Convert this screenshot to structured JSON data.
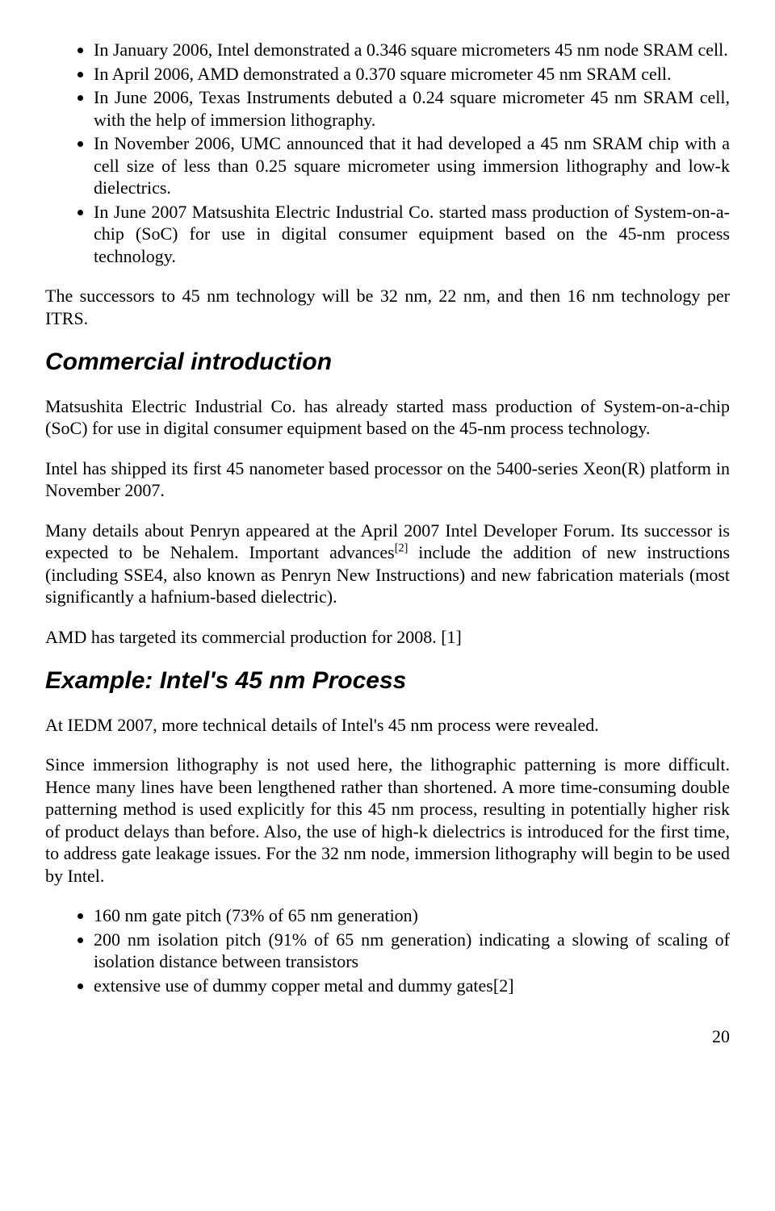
{
  "list1": {
    "items": [
      "In January 2006, Intel demonstrated a 0.346 square micrometers 45 nm node SRAM cell.",
      "In April 2006, AMD demonstrated a 0.370 square micrometer 45 nm SRAM cell.",
      "In June 2006, Texas Instruments debuted a 0.24 square micrometer 45 nm SRAM cell, with the help of immersion lithography.",
      "In November 2006, UMC announced that it had developed a 45 nm SRAM chip with a cell size of less than 0.25 square micrometer using immersion lithography and low-k dielectrics.",
      "In June 2007 Matsushita Electric Industrial Co. started mass production of System-on-a-chip (SoC) for use in digital consumer equipment based on the 45-nm process technology."
    ]
  },
  "para1": "The successors to 45 nm technology will be 32 nm, 22 nm, and then 16 nm technology per ITRS.",
  "heading1": "Commercial introduction",
  "para2": "Matsushita Electric Industrial Co. has already started mass production of System-on-a-chip (SoC) for use in digital consumer equipment based on the 45-nm process technology.",
  "para3": "Intel has shipped its first 45 nanometer based processor on the 5400-series Xeon(R) platform in November 2007.",
  "para4_a": "Many details about Penryn appeared at the April 2007 Intel Developer Forum. Its successor is expected to be Nehalem. Important advances",
  "para4_sup": "[2]",
  "para4_b": " include the addition of new instructions (including SSE4, also known as Penryn New Instructions) and new fabrication materials (most significantly a hafnium-based dielectric).",
  "para5": "AMD has targeted its commercial production for 2008. [1]",
  "heading2": "Example: Intel's 45 nm Process",
  "para6": "At IEDM 2007, more technical details of Intel's 45 nm process were revealed.",
  "para7": "Since immersion lithography is not used here, the lithographic patterning is more difficult. Hence many lines have been lengthened rather than shortened. A more time-consuming double patterning method is used explicitly for this 45 nm process, resulting in potentially higher risk of product delays than before. Also, the use of high-k dielectrics is introduced for the first time, to address gate leakage issues. For the 32 nm node, immersion lithography will begin to be used by Intel.",
  "list2": {
    "items": [
      "160 nm gate pitch (73% of 65 nm generation)",
      "200 nm isolation pitch (91% of 65 nm generation) indicating a slowing of scaling of isolation distance between transistors",
      "extensive use of dummy copper metal and dummy gates[2]"
    ]
  },
  "pageNumber": "20"
}
